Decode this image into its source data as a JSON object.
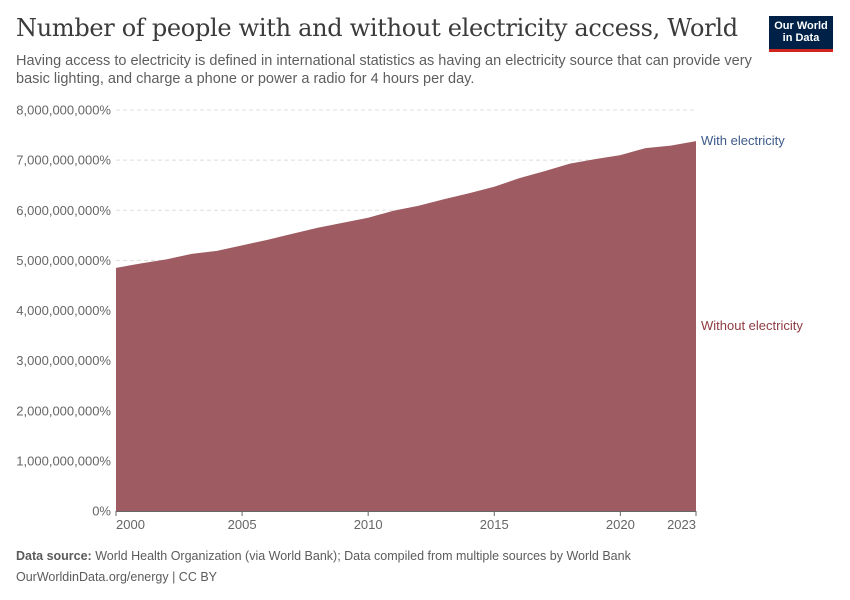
{
  "header": {
    "title": "Number of people with and without electricity access, World",
    "subtitle": "Having access to electricity is defined in international statistics as having an electricity source that can provide very basic lighting, and charge a phone or power a radio for 4 hours per day.",
    "logo_line1": "Our World",
    "logo_line2": "in Data"
  },
  "footer": {
    "source_label": "Data source:",
    "source_text": " World Health Organization (via World Bank); Data compiled from multiple sources by World Bank",
    "url_text": "OurWorldinData.org/energy | CC BY"
  },
  "colors": {
    "without": "#9e5b61",
    "with_label": "#3d5a8a",
    "without_label": "#8f3a42",
    "grid": "#dddddd",
    "axis": "#666666"
  },
  "chart_data": {
    "type": "area",
    "stacked": true,
    "x": [
      2000,
      2001,
      2002,
      2003,
      2004,
      2005,
      2006,
      2007,
      2008,
      2009,
      2010,
      2011,
      2012,
      2013,
      2014,
      2015,
      2016,
      2017,
      2018,
      2019,
      2020,
      2021,
      2022,
      2023
    ],
    "series": [
      {
        "name": "Without electricity",
        "values": [
          4850000000,
          4940000000,
          5020000000,
          5130000000,
          5190000000,
          5300000000,
          5410000000,
          5530000000,
          5650000000,
          5750000000,
          5850000000,
          5990000000,
          6090000000,
          6220000000,
          6340000000,
          6470000000,
          6640000000,
          6780000000,
          6930000000,
          7020000000,
          7100000000,
          7240000000,
          7290000000,
          7380000000
        ]
      },
      {
        "name": "With electricity",
        "values": [
          0,
          0,
          0,
          0,
          0,
          0,
          0,
          0,
          0,
          0,
          0,
          0,
          0,
          0,
          0,
          0,
          0,
          0,
          0,
          0,
          0,
          0,
          0,
          0
        ]
      }
    ],
    "ylim": [
      0,
      8000000000
    ],
    "yticks": [
      0,
      1000000000,
      2000000000,
      3000000000,
      4000000000,
      5000000000,
      6000000000,
      7000000000,
      8000000000
    ],
    "ytick_labels": [
      "0%",
      "1,000,000,000%",
      "2,000,000,000%",
      "3,000,000,000%",
      "4,000,000,000%",
      "5,000,000,000%",
      "6,000,000,000%",
      "7,000,000,000%",
      "8,000,000,000%"
    ],
    "xticks": [
      2000,
      2005,
      2010,
      2015,
      2020,
      2023
    ],
    "xtick_labels": [
      "2000",
      "2005",
      "2010",
      "2015",
      "2020",
      "2023"
    ],
    "grid": true,
    "legend_placement": "right inline labels"
  }
}
